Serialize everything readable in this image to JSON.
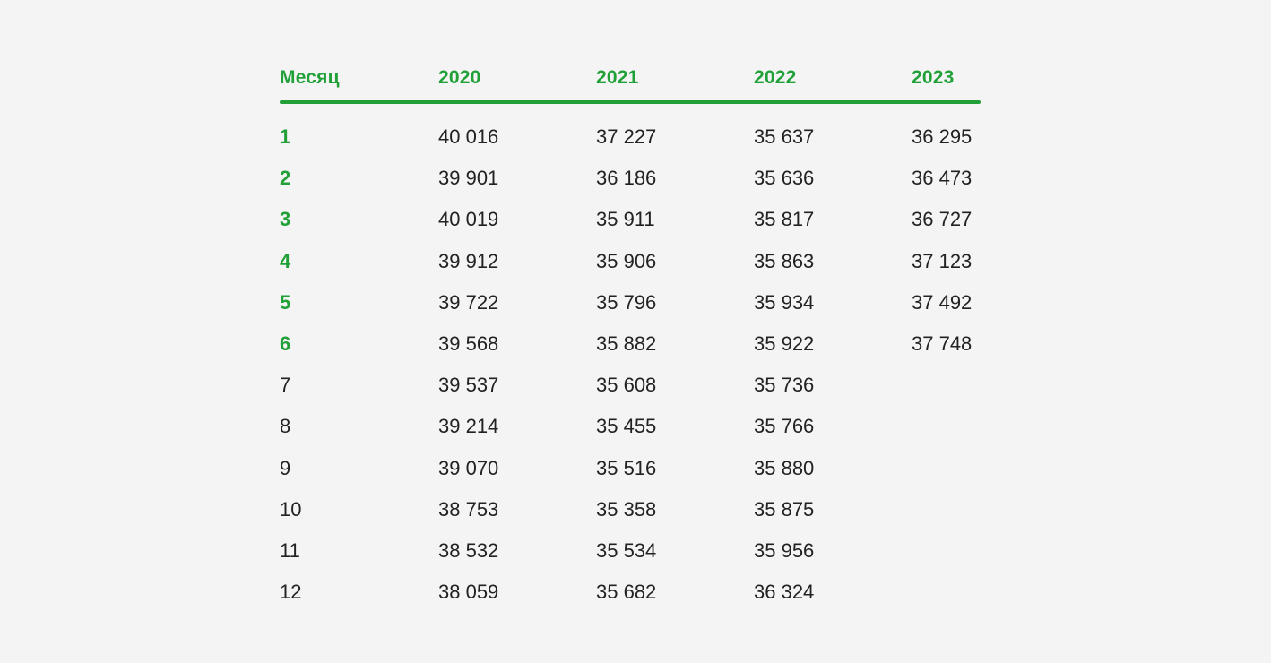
{
  "table": {
    "headers": [
      "Месяц",
      "2020",
      "2021",
      "2022",
      "2023"
    ],
    "rows": [
      {
        "month": "1",
        "y2020": "40 016",
        "y2021": "37 227",
        "y2022": "35 637",
        "y2023": "36 295",
        "highlight": true
      },
      {
        "month": "2",
        "y2020": "39 901",
        "y2021": "36 186",
        "y2022": "35 636",
        "y2023": "36 473",
        "highlight": true
      },
      {
        "month": "3",
        "y2020": "40 019",
        "y2021": "35 911",
        "y2022": "35 817",
        "y2023": "36 727",
        "highlight": true
      },
      {
        "month": "4",
        "y2020": "39 912",
        "y2021": "35 906",
        "y2022": "35 863",
        "y2023": "37 123",
        "highlight": true
      },
      {
        "month": "5",
        "y2020": "39 722",
        "y2021": "35 796",
        "y2022": "35 934",
        "y2023": "37 492",
        "highlight": true
      },
      {
        "month": "6",
        "y2020": "39 568",
        "y2021": "35 882",
        "y2022": "35 922",
        "y2023": "37 748",
        "highlight": true
      },
      {
        "month": "7",
        "y2020": "39 537",
        "y2021": "35 608",
        "y2022": "35 736",
        "y2023": "",
        "highlight": false
      },
      {
        "month": "8",
        "y2020": "39 214",
        "y2021": "35 455",
        "y2022": "35 766",
        "y2023": "",
        "highlight": false
      },
      {
        "month": "9",
        "y2020": "39 070",
        "y2021": "35 516",
        "y2022": "35 880",
        "y2023": "",
        "highlight": false
      },
      {
        "month": "10",
        "y2020": "38 753",
        "y2021": "35 358",
        "y2022": "35 875",
        "y2023": "",
        "highlight": false
      },
      {
        "month": "11",
        "y2020": "38 532",
        "y2021": "35 534",
        "y2022": "35 956",
        "y2023": "",
        "highlight": false
      },
      {
        "month": "12",
        "y2020": "38 059",
        "y2021": "35 682",
        "y2022": "36 324",
        "y2023": "",
        "highlight": false
      }
    ]
  },
  "colors": {
    "accent": "#21a038",
    "text": "#222222",
    "background": "#f4f4f4"
  }
}
